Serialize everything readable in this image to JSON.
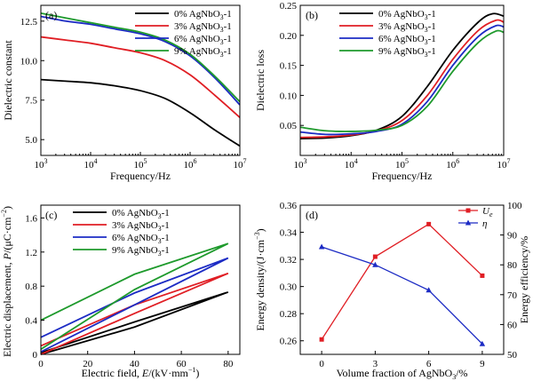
{
  "chart_data": [
    {
      "type": "line",
      "panel_label": "(a)",
      "xlabel": "Frequency/Hz",
      "ylabel": "Dielectric constant",
      "xscale": "log",
      "xlim": [
        1000,
        10000000
      ],
      "ylim": [
        4,
        13.5
      ],
      "xticks": [
        {
          "v": 1000,
          "base": "10",
          "exp": "3"
        },
        {
          "v": 10000,
          "base": "10",
          "exp": "4"
        },
        {
          "v": 100000,
          "base": "10",
          "exp": "5"
        },
        {
          "v": 1000000,
          "base": "10",
          "exp": "6"
        },
        {
          "v": 10000000,
          "base": "10",
          "exp": "7"
        }
      ],
      "yticks": [
        {
          "v": 5,
          "label": "5.0"
        },
        {
          "v": 7.5,
          "label": "7.5"
        },
        {
          "v": 10,
          "label": "10.0"
        },
        {
          "v": 12.5,
          "label": "12.5"
        }
      ],
      "legend_position": "top-right",
      "series": [
        {
          "name": "0% AgNbO3-1",
          "pre": "0% AgNbO",
          "sub": "3",
          "post": "-1",
          "color": "#000000",
          "x": [
            1000,
            3162,
            10000,
            31623,
            100000,
            316228,
            1000000,
            3162278,
            10000000
          ],
          "y": [
            8.8,
            8.7,
            8.6,
            8.4,
            8.1,
            7.6,
            6.7,
            5.6,
            4.6
          ]
        },
        {
          "name": "3% AgNbO3-1",
          "pre": "3% AgNbO",
          "sub": "3",
          "post": "-1",
          "color": "#e01e24",
          "x": [
            1000,
            3162,
            10000,
            31623,
            100000,
            316228,
            1000000,
            3162278,
            10000000
          ],
          "y": [
            11.5,
            11.3,
            11.1,
            10.8,
            10.5,
            10.0,
            9.1,
            7.8,
            6.4
          ]
        },
        {
          "name": "6% AgNbO3-1",
          "pre": "6% AgNbO",
          "sub": "3",
          "post": "-1",
          "color": "#1c2bc4",
          "x": [
            1000,
            3162,
            10000,
            31623,
            100000,
            316228,
            1000000,
            3162278,
            10000000
          ],
          "y": [
            12.8,
            12.5,
            12.3,
            12.0,
            11.7,
            11.2,
            10.3,
            8.9,
            7.2
          ]
        },
        {
          "name": "9% AgNbO3-1",
          "pre": "9% AgNbO",
          "sub": "3",
          "post": "-1",
          "color": "#1e9a2c",
          "x": [
            1000,
            3162,
            10000,
            31623,
            100000,
            316228,
            1000000,
            3162278,
            10000000
          ],
          "y": [
            13.0,
            12.7,
            12.4,
            12.1,
            11.8,
            11.3,
            10.4,
            9.0,
            7.4
          ]
        }
      ]
    },
    {
      "type": "line",
      "panel_label": "(b)",
      "xlabel": "Frequency/Hz",
      "ylabel": "Dielectric loss",
      "xscale": "log",
      "xlim": [
        1000,
        10000000
      ],
      "ylim": [
        0,
        0.25
      ],
      "xticks": [
        {
          "v": 1000,
          "base": "10",
          "exp": "3"
        },
        {
          "v": 10000,
          "base": "10",
          "exp": "4"
        },
        {
          "v": 100000,
          "base": "10",
          "exp": "5"
        },
        {
          "v": 1000000,
          "base": "10",
          "exp": "6"
        },
        {
          "v": 10000000,
          "base": "10",
          "exp": "7"
        }
      ],
      "yticks": [
        {
          "v": 0.05,
          "label": "0.05"
        },
        {
          "v": 0.1,
          "label": "0.10"
        },
        {
          "v": 0.15,
          "label": "0.15"
        },
        {
          "v": 0.2,
          "label": "0.20"
        },
        {
          "v": 0.25,
          "label": "0.25"
        }
      ],
      "legend_position": "top-right",
      "series": [
        {
          "name": "0% AgNbO3-1",
          "pre": "0% AgNbO",
          "sub": "3",
          "post": "-1",
          "color": "#000000",
          "x": [
            1000,
            3162,
            10000,
            31623,
            100000,
            316228,
            1000000,
            3162278,
            6000000,
            10000000
          ],
          "y": [
            0.028,
            0.029,
            0.033,
            0.042,
            0.065,
            0.115,
            0.175,
            0.222,
            0.236,
            0.232
          ]
        },
        {
          "name": "3% AgNbO3-1",
          "pre": "3% AgNbO",
          "sub": "3",
          "post": "-1",
          "color": "#e01e24",
          "x": [
            1000,
            3162,
            10000,
            31623,
            100000,
            316228,
            1000000,
            3162278,
            7000000,
            10000000
          ],
          "y": [
            0.03,
            0.031,
            0.034,
            0.041,
            0.058,
            0.1,
            0.16,
            0.208,
            0.225,
            0.222
          ]
        },
        {
          "name": "6% AgNbO3-1",
          "pre": "6% AgNbO",
          "sub": "3",
          "post": "-1",
          "color": "#1c2bc4",
          "x": [
            1000,
            3162,
            10000,
            31623,
            100000,
            316228,
            1000000,
            3162278,
            7000000,
            10000000
          ],
          "y": [
            0.039,
            0.035,
            0.036,
            0.04,
            0.052,
            0.09,
            0.15,
            0.198,
            0.216,
            0.214
          ]
        },
        {
          "name": "9% AgNbO3-1",
          "pre": "9% AgNbO",
          "sub": "3",
          "post": "-1",
          "color": "#1e9a2c",
          "x": [
            1000,
            3162,
            10000,
            31623,
            100000,
            316228,
            1000000,
            3162278,
            7000000,
            10000000
          ],
          "y": [
            0.047,
            0.041,
            0.04,
            0.042,
            0.05,
            0.082,
            0.14,
            0.188,
            0.207,
            0.205
          ]
        }
      ]
    },
    {
      "type": "line",
      "panel_label": "(c)",
      "xlabel": "Electric field, E/(kV·mm⁻¹)",
      "xlabel_parts": {
        "pre": "Electric field, ",
        "ital": "E",
        "post": "/(kV·mm",
        "sup": "−1",
        "end": ")"
      },
      "ylabel": "Electric displacement, P/(μC·cm⁻²)",
      "ylabel_parts": {
        "pre": "Electric displacement, ",
        "ital": "P",
        "post": "/(μC·cm",
        "sup": "−2",
        "end": ")"
      },
      "xlim": [
        0,
        85
      ],
      "ylim": [
        0,
        1.75
      ],
      "xticks": [
        {
          "v": 0,
          "label": "0"
        },
        {
          "v": 20,
          "label": "20"
        },
        {
          "v": 40,
          "label": "40"
        },
        {
          "v": 60,
          "label": "60"
        },
        {
          "v": 80,
          "label": "80"
        }
      ],
      "yticks": [
        {
          "v": 0,
          "label": "0"
        },
        {
          "v": 0.4,
          "label": "0.4"
        },
        {
          "v": 0.8,
          "label": "0.8"
        },
        {
          "v": 1.2,
          "label": "1.2"
        },
        {
          "v": 1.6,
          "label": "1.6"
        }
      ],
      "legend_position": "top-center",
      "series": [
        {
          "name": "0% AgNbO3-1",
          "pre": "0% AgNbO",
          "sub": "3",
          "post": "-1",
          "color": "#000000",
          "x": [
            0,
            40,
            80,
            40,
            0
          ],
          "y": [
            0.02,
            0.38,
            0.73,
            0.32,
            0.0
          ]
        },
        {
          "name": "3% AgNbO3-1",
          "pre": "3% AgNbO",
          "sub": "3",
          "post": "-1",
          "color": "#e01e24",
          "x": [
            0,
            40,
            80,
            40,
            0
          ],
          "y": [
            0.1,
            0.58,
            0.95,
            0.48,
            0.0
          ]
        },
        {
          "name": "6% AgNbO3-1",
          "pre": "6% AgNbO",
          "sub": "3",
          "post": "-1",
          "color": "#1c2bc4",
          "x": [
            0,
            40,
            80,
            40,
            0
          ],
          "y": [
            0.2,
            0.72,
            1.13,
            0.58,
            0.03
          ]
        },
        {
          "name": "9% AgNbO3-1",
          "pre": "9% AgNbO",
          "sub": "3",
          "post": "-1",
          "color": "#1e9a2c",
          "x": [
            0,
            40,
            80,
            40,
            0
          ],
          "y": [
            0.4,
            0.94,
            1.3,
            0.76,
            0.06
          ]
        }
      ]
    },
    {
      "type": "line",
      "panel_label": "(d)",
      "xlabel": "Volume fraction of AgNbO3/%",
      "xlabel_parts": {
        "pre": "Volume fraction of AgNbO",
        "sub": "3",
        "post": "/%"
      },
      "ylabel": "Energy density/(J·cm⁻³)",
      "ylabel_parts": {
        "pre": "Energy density/(J·cm",
        "sup": "−3",
        "end": ")"
      },
      "ylabel_right": "Energy efficiency/%",
      "xlim": [
        -1.2,
        10.2
      ],
      "ylim": [
        0.25,
        0.36
      ],
      "ylim_right": [
        50,
        100
      ],
      "xticks": [
        {
          "v": 0,
          "label": "0"
        },
        {
          "v": 3,
          "label": "3"
        },
        {
          "v": 6,
          "label": "6"
        },
        {
          "v": 9,
          "label": "9"
        }
      ],
      "yticks": [
        {
          "v": 0.26,
          "label": "0.26"
        },
        {
          "v": 0.28,
          "label": "0.28"
        },
        {
          "v": 0.3,
          "label": "0.30"
        },
        {
          "v": 0.32,
          "label": "0.32"
        },
        {
          "v": 0.34,
          "label": "0.34"
        },
        {
          "v": 0.36,
          "label": "0.36"
        }
      ],
      "yticks_right": [
        {
          "v": 50,
          "label": "50"
        },
        {
          "v": 60,
          "label": "60"
        },
        {
          "v": 70,
          "label": "70"
        },
        {
          "v": 80,
          "label": "80"
        },
        {
          "v": 90,
          "label": "90"
        },
        {
          "v": 100,
          "label": "100"
        }
      ],
      "legend_position": "top-right",
      "series": [
        {
          "name": "Ue",
          "label_main": "U",
          "label_sub": "e",
          "axis": "left",
          "marker": "square",
          "color": "#e01e24",
          "x": [
            0,
            3,
            6,
            9
          ],
          "y": [
            0.261,
            0.322,
            0.346,
            0.308
          ]
        },
        {
          "name": "η",
          "label_main": "η",
          "axis": "right",
          "marker": "triangle",
          "color": "#1c2bc4",
          "x": [
            0,
            3,
            6,
            9
          ],
          "y": [
            86,
            80,
            71.5,
            53.5
          ]
        }
      ]
    }
  ]
}
